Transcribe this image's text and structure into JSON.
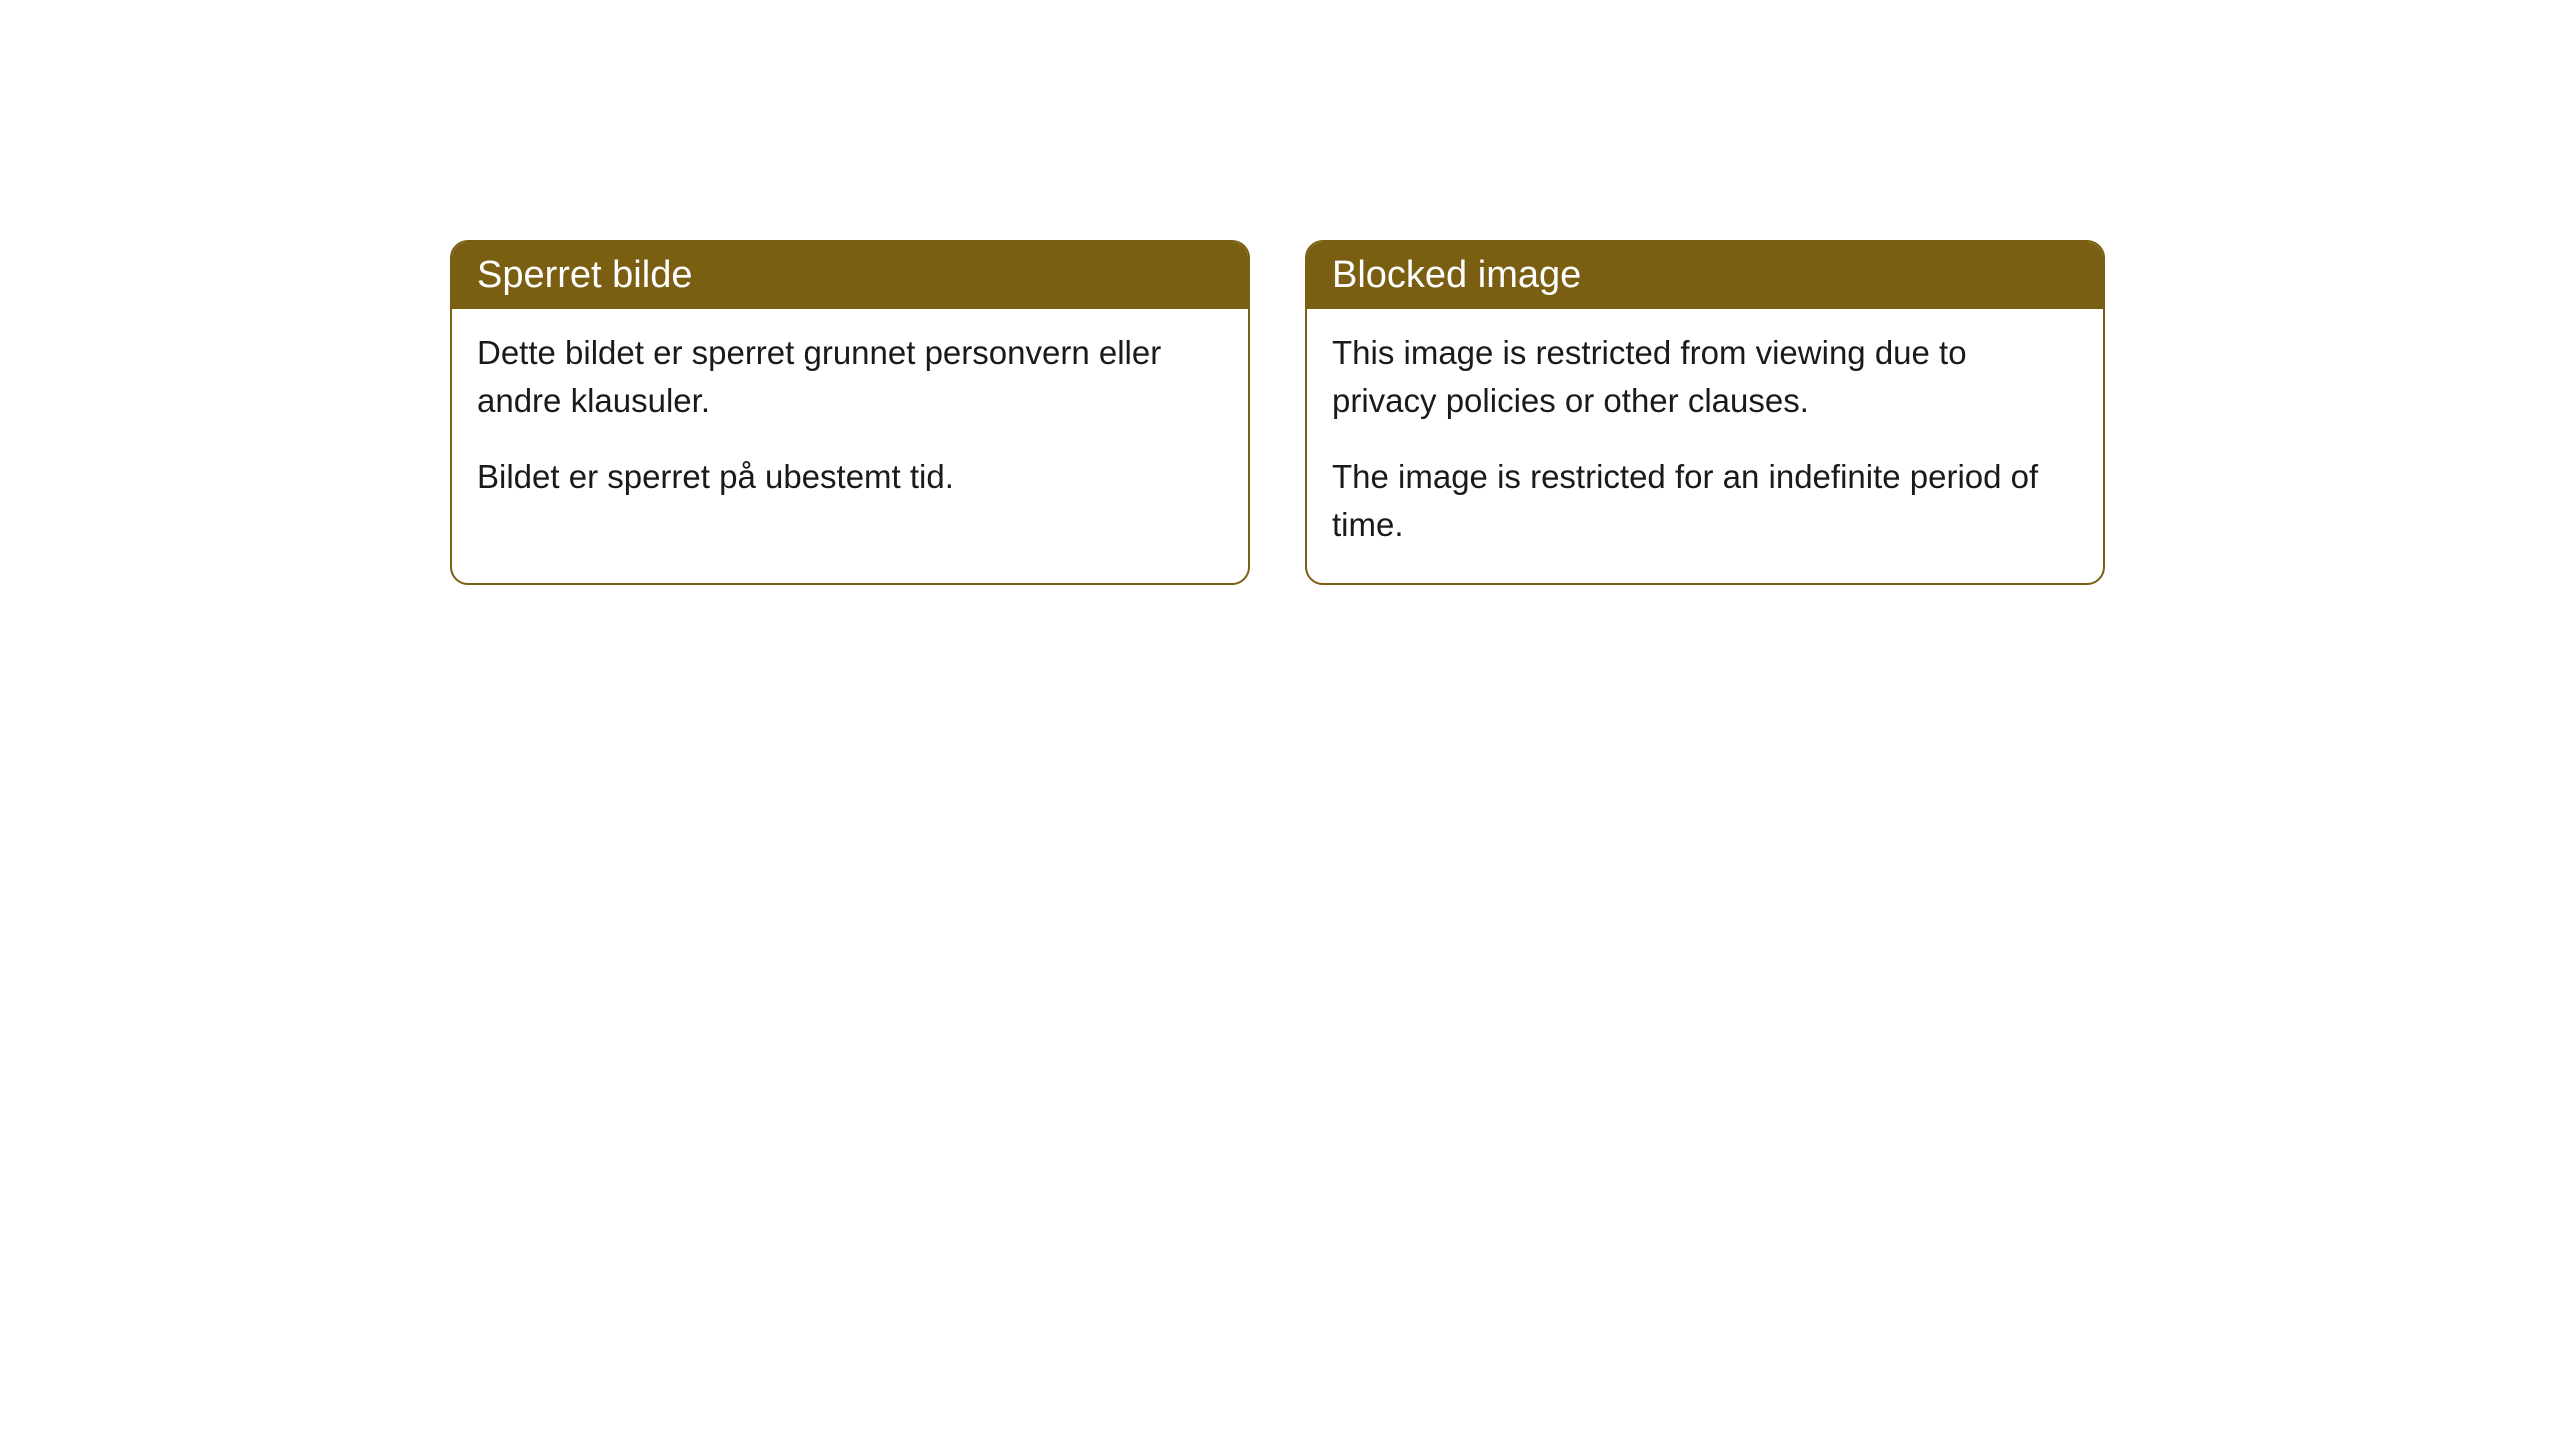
{
  "cards": [
    {
      "title": "Sperret bilde",
      "para1": "Dette bildet er sperret grunnet personvern eller andre klausuler.",
      "para2": "Bildet er sperret på ubestemt tid."
    },
    {
      "title": "Blocked image",
      "para1": "This image is restricted from viewing due to privacy policies or other clauses.",
      "para2": "The image is restricted for an indefinite period of time."
    }
  ],
  "style": {
    "header_bg": "#7a5f13",
    "header_text_color": "#ffffff",
    "border_color": "#7a5f13",
    "body_bg": "#ffffff",
    "body_text_color": "#1a1a1a",
    "border_radius": 18,
    "title_fontsize": 38,
    "body_fontsize": 33
  }
}
